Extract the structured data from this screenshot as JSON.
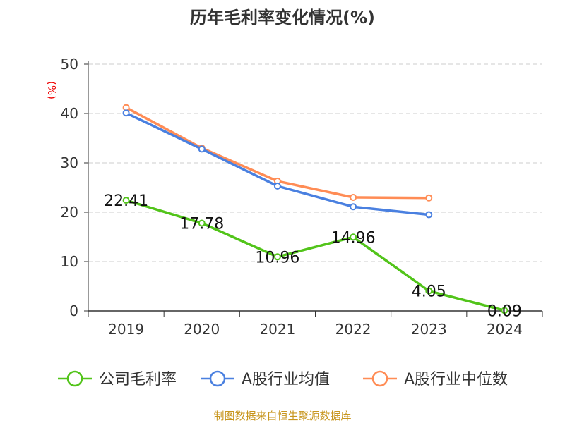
{
  "chart_data": {
    "type": "line",
    "title": "历年毛利率变化情况(%)",
    "ylabel": "(%)",
    "xlabel": "",
    "categories": [
      "2019",
      "2020",
      "2021",
      "2022",
      "2023",
      "2024"
    ],
    "ylim": [
      0,
      50
    ],
    "yticks": [
      "0",
      "10",
      "20",
      "30",
      "40",
      "50"
    ],
    "grid": true,
    "legend_position": "bottom",
    "series": [
      {
        "name": "公司毛利率",
        "color": "#52c41a",
        "values": [
          22.41,
          17.78,
          10.96,
          14.96,
          4.05,
          0.09
        ],
        "labels": [
          "22.41",
          "17.78",
          "10.96",
          "14.96",
          "4.05",
          "0.09"
        ]
      },
      {
        "name": "A股行业均值",
        "color": "#4a80e0",
        "values": [
          40.1,
          32.8,
          25.3,
          21.1,
          19.5,
          null
        ]
      },
      {
        "name": "A股行业中位数",
        "color": "#ff8c55",
        "values": [
          41.2,
          33.0,
          26.3,
          23.0,
          22.9,
          null
        ]
      }
    ]
  },
  "footer": {
    "source": "制图数据来自恒生聚源数据库"
  }
}
